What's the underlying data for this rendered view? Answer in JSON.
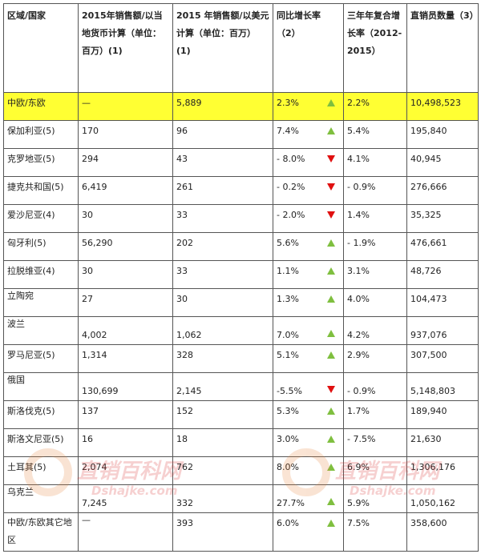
{
  "header": {
    "region": "区域/国家",
    "local_sales": "2015年销售额/以当地货币计算（单位：百万）(1)",
    "usd_sales": "2015 年销售额/以美元计算（单位：百万）(1)",
    "yoy": "同比增长率（2）",
    "cagr": "三年年复合增长率（2012-2015）",
    "sellers": "直销员数量（3）"
  },
  "rows": [
    {
      "region": "中欧/东欧",
      "local": "—",
      "usd": "5,889",
      "yoy": "2.3%",
      "trend": "up",
      "cagr": "2.2%",
      "sellers": "10,498,523"
    },
    {
      "region": "保加利亚(5)",
      "local": "170",
      "usd": "96",
      "yoy": "7.4%",
      "trend": "up",
      "cagr": "5.4%",
      "sellers": "195,840"
    },
    {
      "region": "克罗地亚(5)",
      "local": "294",
      "usd": "43",
      "yoy": "- 8.0%",
      "trend": "down",
      "cagr": "4.1%",
      "sellers": "40,945"
    },
    {
      "region": "捷克共和国(5)",
      "local": "6,419",
      "usd": "261",
      "yoy": "- 0.2%",
      "trend": "down",
      "cagr": "- 0.9%",
      "sellers": "276,666"
    },
    {
      "region": "爱沙尼亚(4)",
      "local": "30",
      "usd": "33",
      "yoy": "- 2.0%",
      "trend": "down",
      "cagr": "1.4%",
      "sellers": "35,325"
    },
    {
      "region": "匈牙利(5)",
      "local": "56,290",
      "usd": "202",
      "yoy": "5.6%",
      "trend": "up",
      "cagr": "- 1.9%",
      "sellers": "476,661"
    },
    {
      "region": "拉脱维亚(4)",
      "local": "30",
      "usd": "33",
      "yoy": "1.1%",
      "trend": "up",
      "cagr": "3.1%",
      "sellers": "48,726"
    },
    {
      "region": "立陶宛",
      "local": "27",
      "usd": "30",
      "yoy": "1.3%",
      "trend": "up",
      "cagr": "4.0%",
      "sellers": "104,473"
    },
    {
      "region": "波兰",
      "local": "4,002",
      "usd": "1,062",
      "yoy": "7.0%",
      "trend": "up",
      "cagr": "4.2%",
      "sellers": "937,076"
    },
    {
      "region": "罗马尼亚(5)",
      "local": "1,314",
      "usd": "328",
      "yoy": "5.1%",
      "trend": "up",
      "cagr": "2.9%",
      "sellers": "307,500"
    },
    {
      "region": "俄国",
      "local": "130,699",
      "usd": "2,145",
      "yoy": "-5.5%",
      "trend": "down",
      "cagr": "- 0.9%",
      "sellers": "5,148,803"
    },
    {
      "region": "斯洛伐克(5)",
      "local": "137",
      "usd": "152",
      "yoy": "5.3%",
      "trend": "up",
      "cagr": "1.7%",
      "sellers": "189,940"
    },
    {
      "region": "斯洛文尼亚(5)",
      "local": "16",
      "usd": "18",
      "yoy": "3.0%",
      "trend": "up",
      "cagr": "- 7.5%",
      "sellers": "21,630"
    },
    {
      "region": "土耳其(5)",
      "local": "2,074",
      "usd": "762",
      "yoy": "8.0%",
      "trend": "up",
      "cagr": "6.9%",
      "sellers": "1,306,176"
    },
    {
      "region": "乌克兰",
      "local": "7,245",
      "usd": "332",
      "yoy": "27.7%",
      "trend": "up",
      "cagr": "5.9%",
      "sellers": "1,050,162"
    },
    {
      "region": "中欧/东欧其它地区",
      "local": "—",
      "usd": "393",
      "yoy": "6.0%",
      "trend": "up",
      "cagr": "7.5%",
      "sellers": "358,600"
    }
  ],
  "watermark": {
    "name": "直销百科网",
    "url": "Dshajke.com"
  },
  "colors": {
    "highlight": "#ffff33",
    "up": "#7fbf3f",
    "down": "#e01010"
  }
}
